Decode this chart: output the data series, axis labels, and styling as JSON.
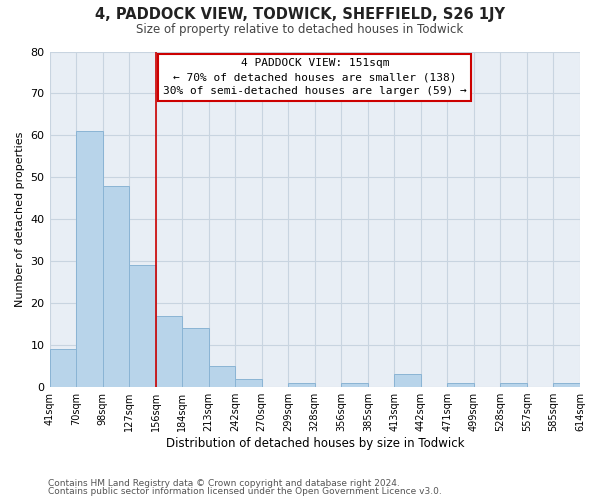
{
  "title": "4, PADDOCK VIEW, TODWICK, SHEFFIELD, S26 1JY",
  "subtitle": "Size of property relative to detached houses in Todwick",
  "xlabel": "Distribution of detached houses by size in Todwick",
  "ylabel": "Number of detached properties",
  "footer_line1": "Contains HM Land Registry data © Crown copyright and database right 2024.",
  "footer_line2": "Contains public sector information licensed under the Open Government Licence v3.0.",
  "bin_labels": [
    "41sqm",
    "70sqm",
    "98sqm",
    "127sqm",
    "156sqm",
    "184sqm",
    "213sqm",
    "242sqm",
    "270sqm",
    "299sqm",
    "328sqm",
    "356sqm",
    "385sqm",
    "413sqm",
    "442sqm",
    "471sqm",
    "499sqm",
    "528sqm",
    "557sqm",
    "585sqm",
    "614sqm"
  ],
  "bar_values": [
    9,
    61,
    48,
    29,
    17,
    14,
    5,
    2,
    0,
    1,
    0,
    1,
    0,
    3,
    0,
    1,
    0,
    1,
    0,
    1
  ],
  "bar_color": "#b8d4ea",
  "bar_edge_color": "#8ab4d4",
  "reference_line_x": 4,
  "reference_line_color": "#cc0000",
  "annotation_line1": "4 PADDOCK VIEW: 151sqm",
  "annotation_line2": "← 70% of detached houses are smaller (138)",
  "annotation_line3": "30% of semi-detached houses are larger (59) →",
  "annotation_box_edge_color": "#cc0000",
  "ylim": [
    0,
    80
  ],
  "yticks": [
    0,
    10,
    20,
    30,
    40,
    50,
    60,
    70,
    80
  ],
  "background_color": "#ffffff",
  "plot_background_color": "#e8eef5",
  "grid_color": "#c8d4e0"
}
